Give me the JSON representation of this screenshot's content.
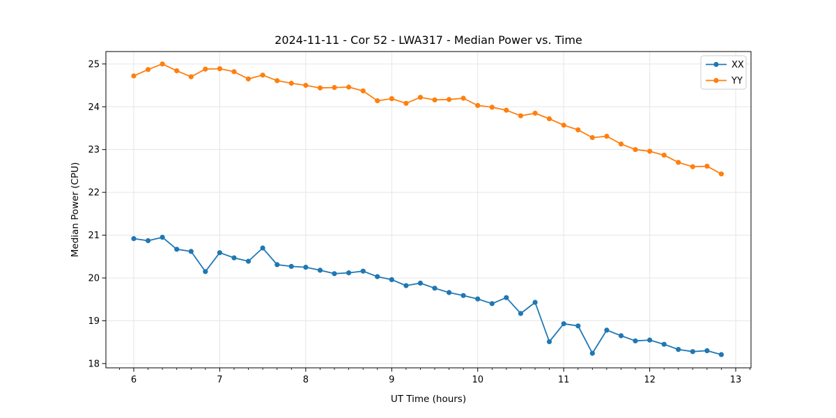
{
  "figure": {
    "background": "#ffffff"
  },
  "chart_data": {
    "type": "line",
    "title": "2024-11-11 - Cor 52 - LWA317 - Median Power vs. Time",
    "xlabel": "UT Time (hours)",
    "ylabel": "Median Power (CPU)",
    "xlim": [
      5.676,
      13.178
    ],
    "ylim": [
      17.9,
      25.29
    ],
    "xticks": [
      6,
      7,
      8,
      9,
      10,
      11,
      12,
      13
    ],
    "yticks": [
      18,
      19,
      20,
      21,
      22,
      23,
      24,
      25
    ],
    "minor_xtick_interval": 0.166667,
    "grid": true,
    "grid_color": "#e5e5e5",
    "spine_color": "#000000",
    "legend_position": "upper-right",
    "x": [
      6.0,
      6.167,
      6.333,
      6.5,
      6.667,
      6.833,
      7.0,
      7.167,
      7.333,
      7.5,
      7.667,
      7.833,
      8.0,
      8.167,
      8.333,
      8.5,
      8.667,
      8.833,
      9.0,
      9.167,
      9.333,
      9.5,
      9.667,
      9.833,
      10.0,
      10.167,
      10.333,
      10.5,
      10.667,
      10.833,
      11.0,
      11.167,
      11.333,
      11.5,
      11.667,
      11.833,
      12.0,
      12.167,
      12.333,
      12.5,
      12.667,
      12.833
    ],
    "series": [
      {
        "name": "XX",
        "color": "#1f77b4",
        "values": [
          20.92,
          20.87,
          20.95,
          20.67,
          20.62,
          20.15,
          20.59,
          20.47,
          20.39,
          20.7,
          20.31,
          20.27,
          20.25,
          20.18,
          20.1,
          20.12,
          20.16,
          20.03,
          19.96,
          19.82,
          19.88,
          19.76,
          19.66,
          19.59,
          19.51,
          19.4,
          19.54,
          19.17,
          19.43,
          18.51,
          18.93,
          18.88,
          18.24,
          18.78,
          18.65,
          18.53,
          18.55,
          18.45,
          18.33,
          18.28,
          18.3,
          18.21
        ]
      },
      {
        "name": "YY",
        "color": "#ff7f0e",
        "values": [
          24.72,
          24.87,
          25.0,
          24.84,
          24.7,
          24.88,
          24.89,
          24.82,
          24.65,
          24.74,
          24.61,
          24.55,
          24.5,
          24.44,
          24.45,
          24.46,
          24.37,
          24.14,
          24.19,
          24.08,
          24.22,
          24.16,
          24.17,
          24.2,
          24.03,
          23.99,
          23.92,
          23.79,
          23.85,
          23.72,
          23.57,
          23.46,
          23.28,
          23.31,
          23.13,
          23.0,
          22.96,
          22.87,
          22.7,
          22.6,
          22.61,
          22.43
        ]
      }
    ]
  }
}
